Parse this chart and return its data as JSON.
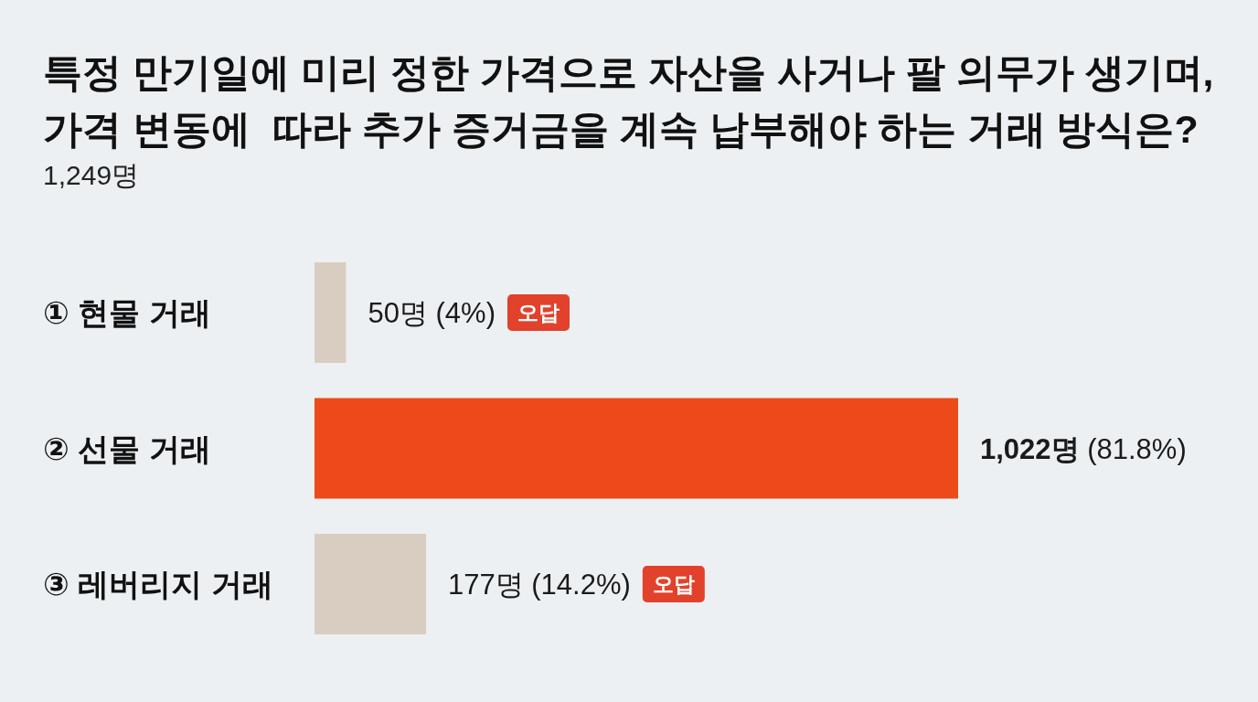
{
  "chart_data": {
    "type": "bar",
    "orientation": "horizontal",
    "title": "특정 만기일에 미리 정한 가격으로 자산을 사거나 팔 의무가 생기며,\n가격 변동에  따라 추가 증거금을 계속 납부해야 하는 거래 방식은?",
    "subtitle": "1,249명",
    "categories": [
      "① 현물 거래",
      "② 선물 거래",
      "③ 레버리지 거래"
    ],
    "values": [
      50,
      1022,
      177
    ],
    "colors": [
      "#d9cdc1",
      "#ec4a1b",
      "#d9cdc1"
    ],
    "value_labels": [
      "50명 (4%)",
      "1,022명 (81.8%)",
      "177명 (14.2%)"
    ],
    "annotations": [
      "오답",
      "오답"
    ]
  }
}
